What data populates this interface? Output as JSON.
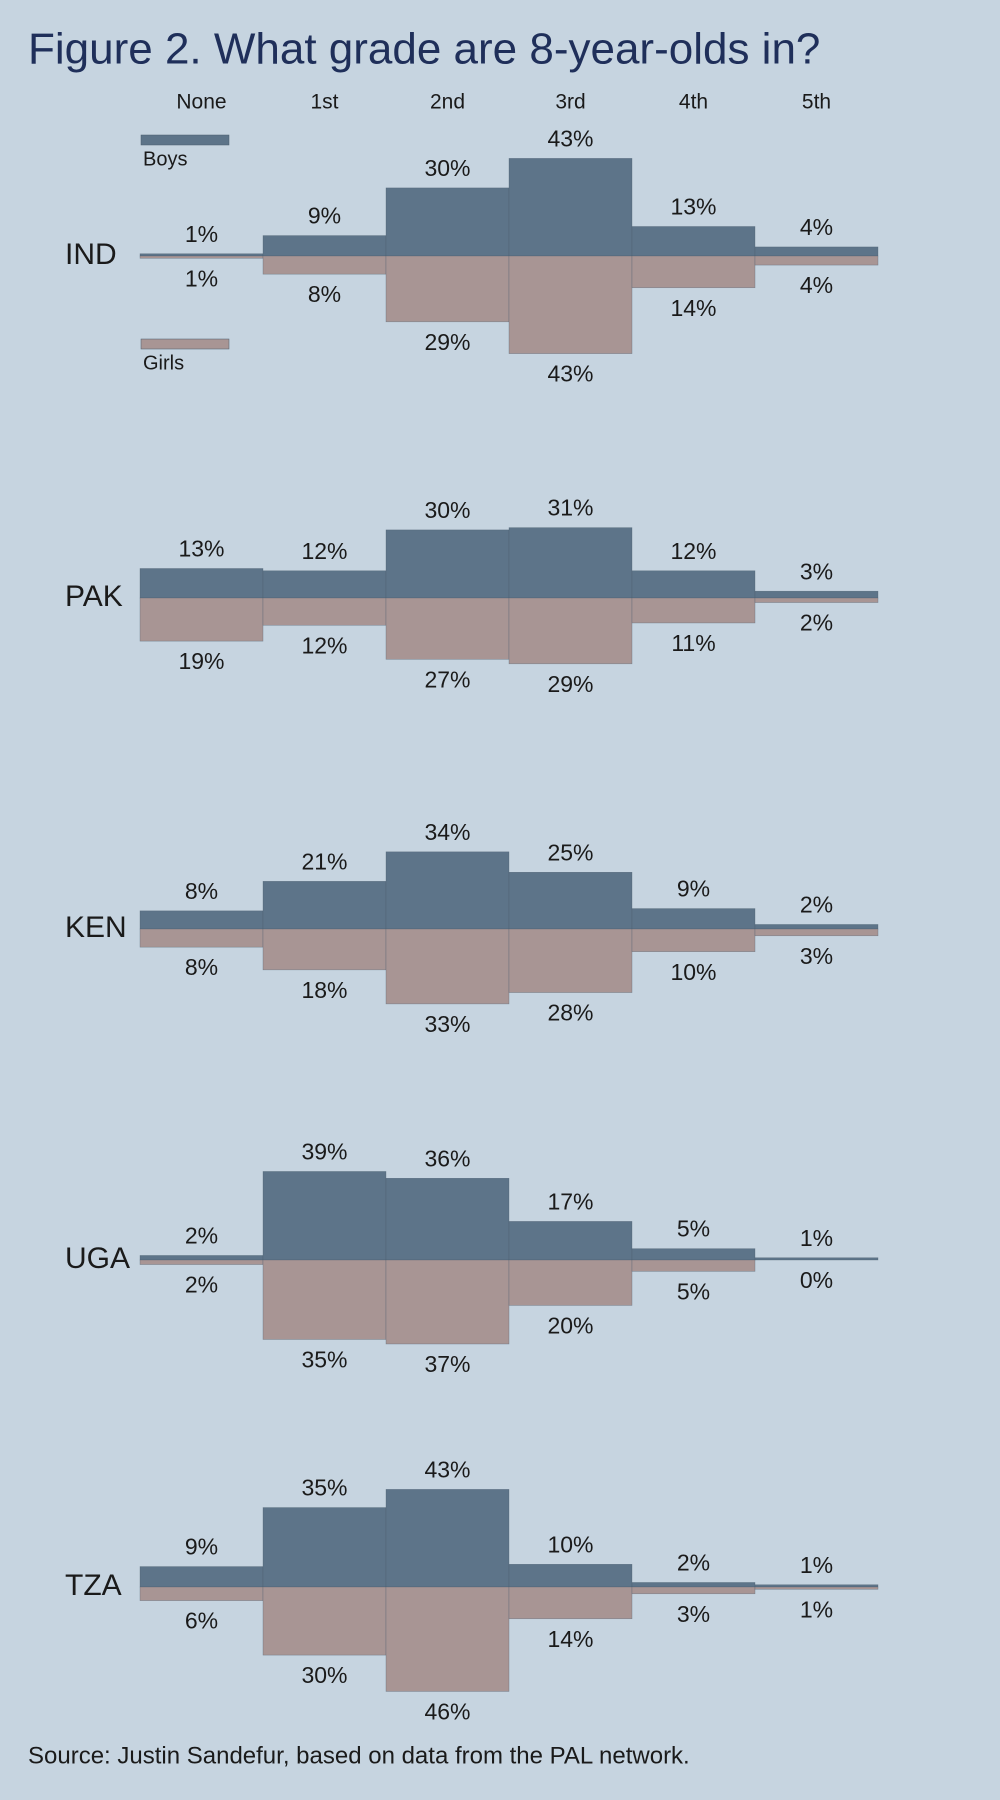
{
  "title": "Figure 2. What grade are 8-year-olds in?",
  "source": "Source: Justin Sandefur, based on data from the PAL network.",
  "chart_data": [
    {
      "type": "bar",
      "title": "IND",
      "categories": [
        "None",
        "1st",
        "2nd",
        "3rd",
        "4th",
        "5th"
      ],
      "series": [
        {
          "name": "Boys",
          "color": "#5d7489",
          "values": [
            1,
            9,
            30,
            43,
            13,
            4
          ],
          "value_labels": [
            "1%",
            "9%",
            "30%",
            "43%",
            "13%",
            "4%"
          ]
        },
        {
          "name": "Girls",
          "color": "#a89594",
          "values": [
            1,
            8,
            29,
            43,
            14,
            4
          ],
          "value_labels": [
            "1%",
            "8%",
            "29%",
            "43%",
            "14%",
            "4%"
          ]
        }
      ]
    },
    {
      "type": "bar",
      "title": "PAK",
      "series": [
        {
          "color": "#5d7489",
          "values": [
            13,
            12,
            30,
            31,
            12,
            3
          ],
          "value_labels": [
            "13%",
            "12%",
            "30%",
            "31%",
            "12%",
            "3%"
          ]
        },
        {
          "color": "#a89594",
          "values": [
            19,
            12,
            27,
            29,
            11,
            2
          ],
          "value_labels": [
            "19%",
            "12%",
            "27%",
            "29%",
            "11%",
            "2%"
          ]
        }
      ]
    },
    {
      "type": "bar",
      "title": "KEN",
      "series": [
        {
          "color": "#5d7489",
          "values": [
            8,
            21,
            34,
            25,
            9,
            2
          ],
          "value_labels": [
            "8%",
            "21%",
            "34%",
            "25%",
            "9%",
            "2%"
          ]
        },
        {
          "color": "#a89594",
          "values": [
            8,
            18,
            33,
            28,
            10,
            3
          ],
          "value_labels": [
            "8%",
            "18%",
            "33%",
            "28%",
            "10%",
            "3%"
          ]
        }
      ]
    },
    {
      "type": "bar",
      "title": "UGA",
      "series": [
        {
          "color": "#5d7489",
          "values": [
            2,
            39,
            36,
            17,
            5,
            1
          ],
          "value_labels": [
            "2%",
            "39%",
            "36%",
            "17%",
            "5%",
            "1%"
          ]
        },
        {
          "color": "#a89594",
          "values": [
            2,
            35,
            37,
            20,
            5,
            0
          ],
          "value_labels": [
            "2%",
            "35%",
            "37%",
            "20%",
            "5%",
            "0%"
          ]
        }
      ]
    },
    {
      "type": "bar",
      "title": "TZA",
      "series": [
        {
          "color": "#5d7489",
          "values": [
            9,
            35,
            43,
            10,
            2,
            1
          ],
          "value_labels": [
            "9%",
            "35%",
            "43%",
            "10%",
            "2%",
            "1%"
          ]
        },
        {
          "color": "#a89594",
          "values": [
            6,
            30,
            46,
            14,
            3,
            1
          ],
          "value_labels": [
            "6%",
            "30%",
            "46%",
            "14%",
            "3%",
            "1%"
          ]
        }
      ]
    }
  ]
}
